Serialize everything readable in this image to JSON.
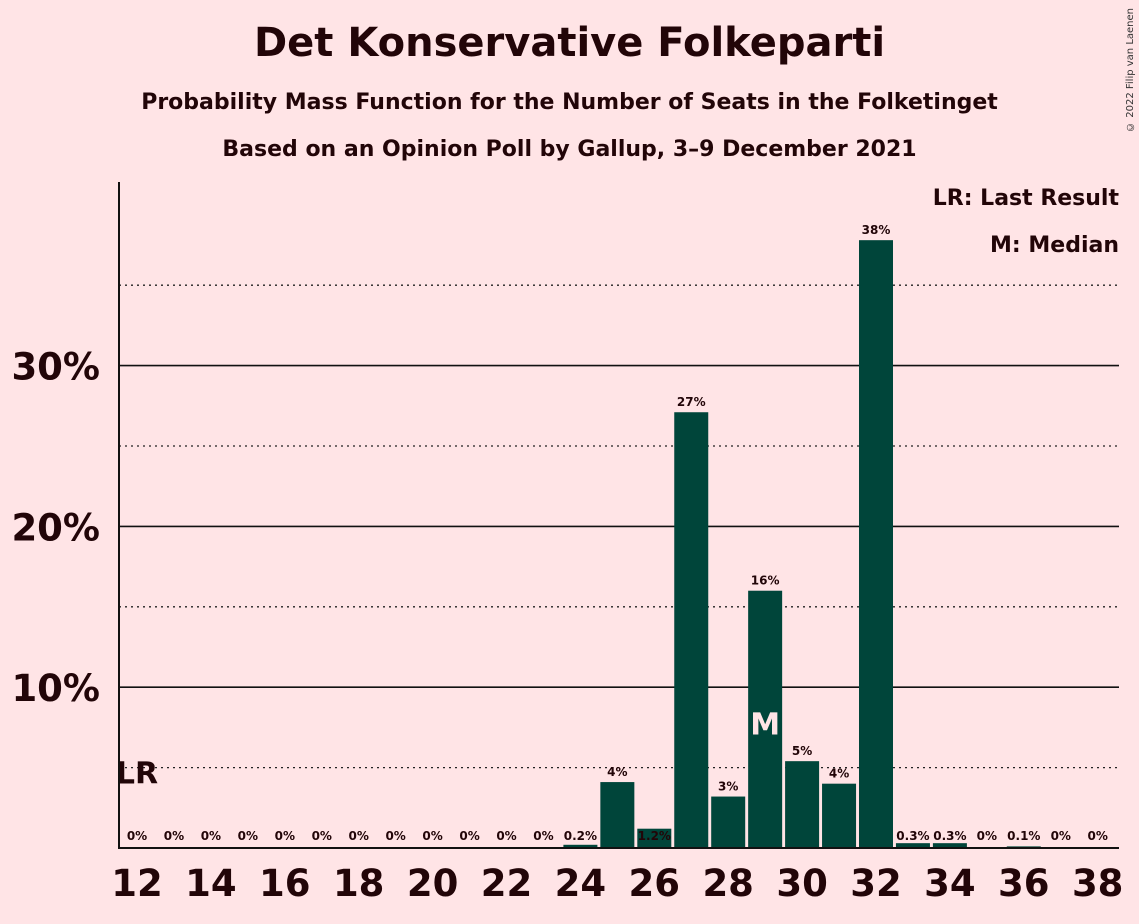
{
  "title": "Det Konservative Folkeparti",
  "subtitle": "Probability Mass Function for the Number of Seats in the Folketinget",
  "subtitle2": "Based on an Opinion Poll by Gallup, 3–9 December 2021",
  "copyright": "© 2022 Filip van Laenen",
  "legend": {
    "lr": "LR: Last Result",
    "median": "M: Median"
  },
  "colors": {
    "bar": "#00453a",
    "background": "#ffe4e6",
    "text": "#220508"
  },
  "chart_data": {
    "type": "bar",
    "title": "Det Konservative Folkeparti",
    "xlabel": "",
    "ylabel": "",
    "ylim": [
      0,
      41
    ],
    "categories": [
      12,
      13,
      14,
      15,
      16,
      17,
      18,
      19,
      20,
      21,
      22,
      23,
      24,
      25,
      26,
      27,
      28,
      29,
      30,
      31,
      32,
      33,
      34,
      35,
      36,
      37,
      38
    ],
    "values": [
      0,
      0,
      0,
      0,
      0,
      0,
      0,
      0,
      0,
      0,
      0,
      0,
      0.2,
      4.1,
      1.2,
      27.1,
      3.2,
      16.0,
      5.4,
      4.0,
      37.8,
      0.3,
      0.3,
      0,
      0.1,
      0,
      0
    ],
    "value_labels": [
      "0%",
      "0%",
      "0%",
      "0%",
      "0%",
      "0%",
      "0%",
      "0%",
      "0%",
      "0%",
      "0%",
      "0%",
      "0.2%",
      "4%",
      "1.2%",
      "27%",
      "3%",
      "16%",
      "5%",
      "4%",
      "38%",
      "0.3%",
      "0.3%",
      "0%",
      "0.1%",
      "0%",
      "0%"
    ],
    "x_tick_labels": [
      "12",
      "14",
      "16",
      "18",
      "20",
      "22",
      "24",
      "26",
      "28",
      "30",
      "32",
      "34",
      "36",
      "38"
    ],
    "y_major_ticks": [
      10,
      20,
      30
    ],
    "y_major_labels": [
      "10%",
      "20%",
      "30%"
    ],
    "y_minor_ticks": [
      5,
      15,
      25,
      35
    ],
    "last_result": {
      "seats": 12,
      "label": "LR"
    },
    "median": {
      "seats": 29,
      "label": "M"
    }
  }
}
